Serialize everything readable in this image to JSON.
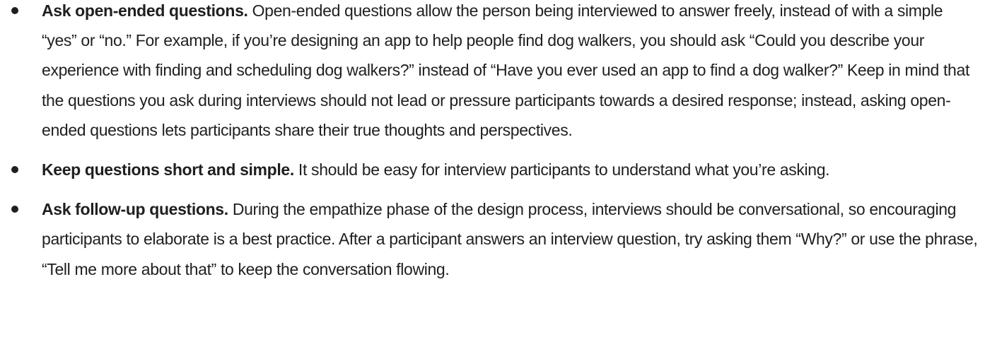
{
  "list": {
    "items": [
      {
        "lead": "Ask open-ended questions.",
        "text": "Open-ended questions allow the person being interviewed to answer freely, instead of with a simple “yes” or “no.” For example, if you’re designing an app to help people find dog walkers, you should ask “Could you describe your experience with finding and scheduling dog walkers?” instead of “Have you ever used an app to find a dog walker?” Keep in mind that the questions you ask during interviews should not lead or pressure participants towards a desired response; instead, asking open-ended questions lets participants share their true thoughts and perspectives."
      },
      {
        "lead": "Keep questions short and simple.",
        "text": "It should be easy for interview participants to understand what you’re asking."
      },
      {
        "lead": "Ask follow-up questions.",
        "text": "During the empathize phase of the design process, interviews should be conversational, so encouraging participants to elaborate is a best practice. After a participant answers an interview question, try asking them “Why?” or use the phrase, “Tell me more about that” to keep the conversation flowing."
      }
    ]
  }
}
